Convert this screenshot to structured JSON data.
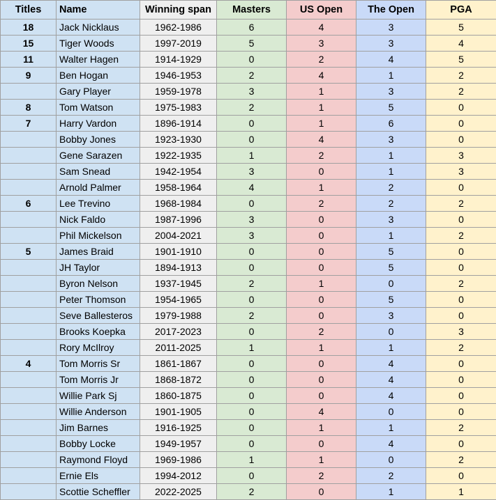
{
  "headers": [
    "Titles",
    "Name",
    "Winning span",
    "Masters",
    "US Open",
    "The Open",
    "PGA"
  ],
  "column_colors": [
    "#cfe2f3",
    "#cfe2f3",
    "#efefef",
    "#d9ead3",
    "#f4cccc",
    "#c9daf8",
    "#fff2cc"
  ],
  "rows": [
    [
      "18",
      "Jack Nicklaus",
      "1962-1986",
      "6",
      "4",
      "3",
      "5"
    ],
    [
      "15",
      "Tiger Woods",
      "1997-2019",
      "5",
      "3",
      "3",
      "4"
    ],
    [
      "11",
      "Walter Hagen",
      "1914-1929",
      "0",
      "2",
      "4",
      "5"
    ],
    [
      "9",
      "Ben Hogan",
      "1946-1953",
      "2",
      "4",
      "1",
      "2"
    ],
    [
      "",
      "Gary Player",
      "1959-1978",
      "3",
      "1",
      "3",
      "2"
    ],
    [
      "8",
      "Tom Watson",
      "1975-1983",
      "2",
      "1",
      "5",
      "0"
    ],
    [
      "7",
      "Harry Vardon",
      "1896-1914",
      "0",
      "1",
      "6",
      "0"
    ],
    [
      "",
      "Bobby Jones",
      "1923-1930",
      "0",
      "4",
      "3",
      "0"
    ],
    [
      "",
      "Gene Sarazen",
      "1922-1935",
      "1",
      "2",
      "1",
      "3"
    ],
    [
      "",
      "Sam Snead",
      "1942-1954",
      "3",
      "0",
      "1",
      "3"
    ],
    [
      "",
      "Arnold Palmer",
      "1958-1964",
      "4",
      "1",
      "2",
      "0"
    ],
    [
      "6",
      "Lee Trevino",
      "1968-1984",
      "0",
      "2",
      "2",
      "2"
    ],
    [
      "",
      "Nick Faldo",
      "1987-1996",
      "3",
      "0",
      "3",
      "0"
    ],
    [
      "",
      "Phil Mickelson",
      "2004-2021",
      "3",
      "0",
      "1",
      "2"
    ],
    [
      "5",
      "James Braid",
      "1901-1910",
      "0",
      "0",
      "5",
      "0"
    ],
    [
      "",
      "JH Taylor",
      "1894-1913",
      "0",
      "0",
      "5",
      "0"
    ],
    [
      "",
      "Byron Nelson",
      "1937-1945",
      "2",
      "1",
      "0",
      "2"
    ],
    [
      "",
      "Peter Thomson",
      "1954-1965",
      "0",
      "0",
      "5",
      "0"
    ],
    [
      "",
      "Seve Ballesteros",
      "1979-1988",
      "2",
      "0",
      "3",
      "0"
    ],
    [
      "",
      "Brooks Koepka",
      "2017-2023",
      "0",
      "2",
      "0",
      "3"
    ],
    [
      "",
      "Rory McIlroy",
      "2011-2025",
      "1",
      "1",
      "1",
      "2"
    ],
    [
      "4",
      "Tom Morris Sr",
      "1861-1867",
      "0",
      "0",
      "4",
      "0"
    ],
    [
      "",
      "Tom Morris Jr",
      "1868-1872",
      "0",
      "0",
      "4",
      "0"
    ],
    [
      "",
      "Willie Park Sj",
      "1860-1875",
      "0",
      "0",
      "4",
      "0"
    ],
    [
      "",
      "Willie Anderson",
      "1901-1905",
      "0",
      "4",
      "0",
      "0"
    ],
    [
      "",
      "Jim Barnes",
      "1916-1925",
      "0",
      "1",
      "1",
      "2"
    ],
    [
      "",
      "Bobby Locke",
      "1949-1957",
      "0",
      "0",
      "4",
      "0"
    ],
    [
      "",
      "Raymond Floyd",
      "1969-1986",
      "1",
      "1",
      "0",
      "2"
    ],
    [
      "",
      "Ernie Els",
      "1994-2012",
      "0",
      "2",
      "2",
      "0"
    ],
    [
      "",
      "Scottie Scheffler",
      "2022-2025",
      "2",
      "0",
      "1",
      "1"
    ]
  ]
}
